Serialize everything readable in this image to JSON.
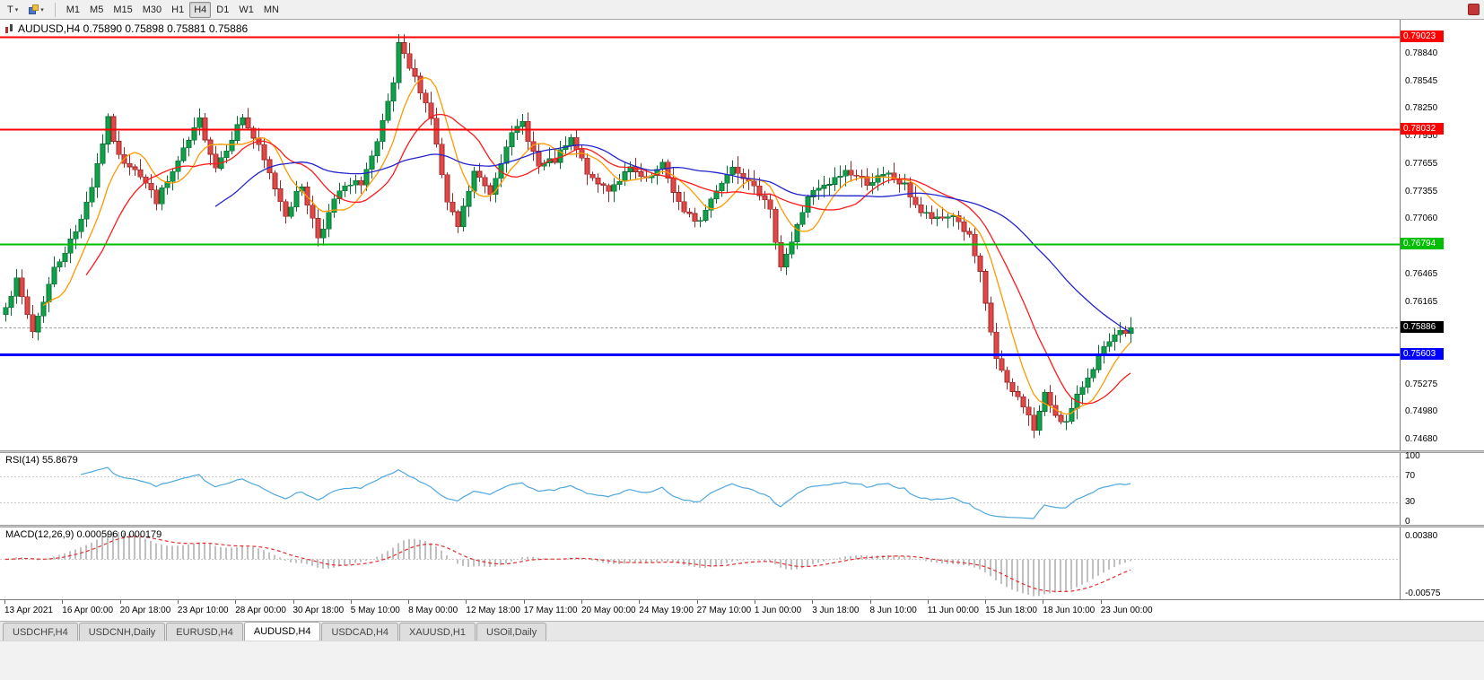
{
  "icons": {
    "dropdown_caret": "▾"
  },
  "toolbar": {
    "templates_label": "T",
    "timeframes": [
      "M1",
      "M5",
      "M15",
      "M30",
      "H1",
      "H4",
      "D1",
      "W1",
      "MN"
    ],
    "active_timeframe": "H4"
  },
  "main_chart": {
    "header": "AUDUSD,H4  0.75890 0.75898 0.75881 0.75886",
    "axis_labels": [
      "0.78840",
      "0.78545",
      "0.78250",
      "0.77950",
      "0.77655",
      "0.77355",
      "0.77060",
      "0.76465",
      "0.76165",
      "0.75275",
      "0.74980",
      "0.74680"
    ]
  },
  "rsi_panel": {
    "label": "RSI(14) 55.8679",
    "axis_labels": [
      "100",
      "70",
      "30",
      "0"
    ]
  },
  "macd_panel": {
    "label": "MACD(12,26,9) 0.000596 0.000179"
  },
  "time_axis": {
    "labels": [
      "13 Apr 2021",
      "16 Apr 00:00",
      "20 Apr 18:00",
      "23 Apr 10:00",
      "28 Apr 00:00",
      "30 Apr 18:00",
      "5 May 10:00",
      "8 May 00:00",
      "12 May 18:00",
      "17 May 11:00",
      "20 May 00:00",
      "24 May 19:00",
      "27 May 10:00",
      "1 Jun 00:00",
      "3 Jun 18:00",
      "8 Jun 10:00",
      "11 Jun 00:00",
      "15 Jun 18:00",
      "18 Jun 10:00",
      "23 Jun 00:00"
    ]
  },
  "tab_bar": {
    "tabs": [
      "USDCHF,H4",
      "USDCNH,Daily",
      "EURUSD,H4",
      "AUDUSD,H4",
      "USDCAD,H4",
      "XAUUSD,H1",
      "USOil,Daily"
    ],
    "active_tab": "AUDUSD,H4"
  },
  "chart_data": {
    "type": "candlestick",
    "symbol": "AUDUSD",
    "timeframe": "H4",
    "current_bar": {
      "open": 0.7589,
      "high": 0.75898,
      "low": 0.75881,
      "close": 0.75886
    },
    "last_close": 0.75886,
    "seed": 7,
    "candle_count": 210,
    "ylim": [
      0.74564,
      0.79208
    ],
    "price_anchors": [
      [
        0,
        0.7615
      ],
      [
        2,
        0.7638
      ],
      [
        5,
        0.7585
      ],
      [
        9,
        0.7652
      ],
      [
        13,
        0.7692
      ],
      [
        16,
        0.7742
      ],
      [
        19,
        0.7812
      ],
      [
        21,
        0.7772
      ],
      [
        24,
        0.7762
      ],
      [
        28,
        0.7726
      ],
      [
        31,
        0.7756
      ],
      [
        36,
        0.7812
      ],
      [
        39,
        0.7762
      ],
      [
        44,
        0.7816
      ],
      [
        47,
        0.7782
      ],
      [
        52,
        0.7712
      ],
      [
        55,
        0.7742
      ],
      [
        58,
        0.7687
      ],
      [
        62,
        0.7736
      ],
      [
        66,
        0.7746
      ],
      [
        69,
        0.7786
      ],
      [
        72,
        0.7852
      ],
      [
        73,
        0.7892
      ],
      [
        75,
        0.7868
      ],
      [
        77,
        0.7846
      ],
      [
        79,
        0.7816
      ],
      [
        82,
        0.7722
      ],
      [
        84,
        0.7697
      ],
      [
        87,
        0.7756
      ],
      [
        90,
        0.7734
      ],
      [
        93,
        0.7788
      ],
      [
        96,
        0.781
      ],
      [
        99,
        0.7762
      ],
      [
        102,
        0.7769
      ],
      [
        105,
        0.7791
      ],
      [
        109,
        0.7746
      ],
      [
        112,
        0.7739
      ],
      [
        116,
        0.7759
      ],
      [
        119,
        0.7746
      ],
      [
        122,
        0.7763
      ],
      [
        126,
        0.7711
      ],
      [
        129,
        0.7704
      ],
      [
        132,
        0.7739
      ],
      [
        135,
        0.7762
      ],
      [
        139,
        0.7746
      ],
      [
        142,
        0.7712
      ],
      [
        144,
        0.7657
      ],
      [
        146,
        0.7681
      ],
      [
        149,
        0.7731
      ],
      [
        153,
        0.7743
      ],
      [
        156,
        0.7758
      ],
      [
        160,
        0.7746
      ],
      [
        164,
        0.7753
      ],
      [
        167,
        0.7741
      ],
      [
        170,
        0.7713
      ],
      [
        173,
        0.7704
      ],
      [
        176,
        0.7711
      ],
      [
        179,
        0.7686
      ],
      [
        181,
        0.7645
      ],
      [
        182,
        0.7612
      ],
      [
        184,
        0.7556
      ],
      [
        186,
        0.7526
      ],
      [
        189,
        0.7506
      ],
      [
        191,
        0.7479
      ],
      [
        193,
        0.7516
      ],
      [
        195,
        0.7496
      ],
      [
        197,
        0.7486
      ],
      [
        200,
        0.7526
      ],
      [
        203,
        0.7558
      ],
      [
        206,
        0.7578
      ],
      [
        209,
        0.75886
      ]
    ],
    "colors": {
      "up": "#0FA24B",
      "up_border": "#0A6E33",
      "down": "#E14848",
      "down_border": "#9B2727",
      "background": "#FFFFFF"
    },
    "moving_averages": [
      {
        "name": "ma-fast",
        "period": 8,
        "color": "#FF9900"
      },
      {
        "name": "ma-mid",
        "period": 16,
        "color": "#FF1A1A"
      },
      {
        "name": "ma-slow",
        "period": 40,
        "color": "#2424CF"
      }
    ],
    "horizontal_lines": [
      {
        "price": 0.79023,
        "label": "0.79023",
        "color": "#FF0000",
        "width": 2
      },
      {
        "price": 0.78032,
        "label": "0.78032",
        "color": "#FF0000",
        "width": 2
      },
      {
        "price": 0.76794,
        "label": "0.76794",
        "color": "#00BE00",
        "width": 2
      },
      {
        "price": 0.75603,
        "label": "0.75603",
        "color": "#0000FF",
        "width": 3
      }
    ],
    "current_price": {
      "value": 0.75886,
      "label": "0.75886",
      "box_color": "#000000",
      "line_color": "#A0A0A0"
    },
    "rsi": {
      "period": 14,
      "last_value": 55.8679,
      "color": "#4FA8DF",
      "dotted_levels": [
        70,
        30
      ],
      "scale": [
        0,
        100
      ]
    },
    "macd": {
      "fast": 12,
      "slow": 26,
      "signal_period": 9,
      "last_main": 0.000596,
      "last_signal": 0.000179,
      "histogram_color": "#C0C0C0",
      "signal_color": "#E03030",
      "axis_labels": [
        {
          "value": 0.0038,
          "label": "0.00380"
        },
        {
          "value": -0.00575,
          "label": "-0.00575"
        }
      ]
    }
  }
}
